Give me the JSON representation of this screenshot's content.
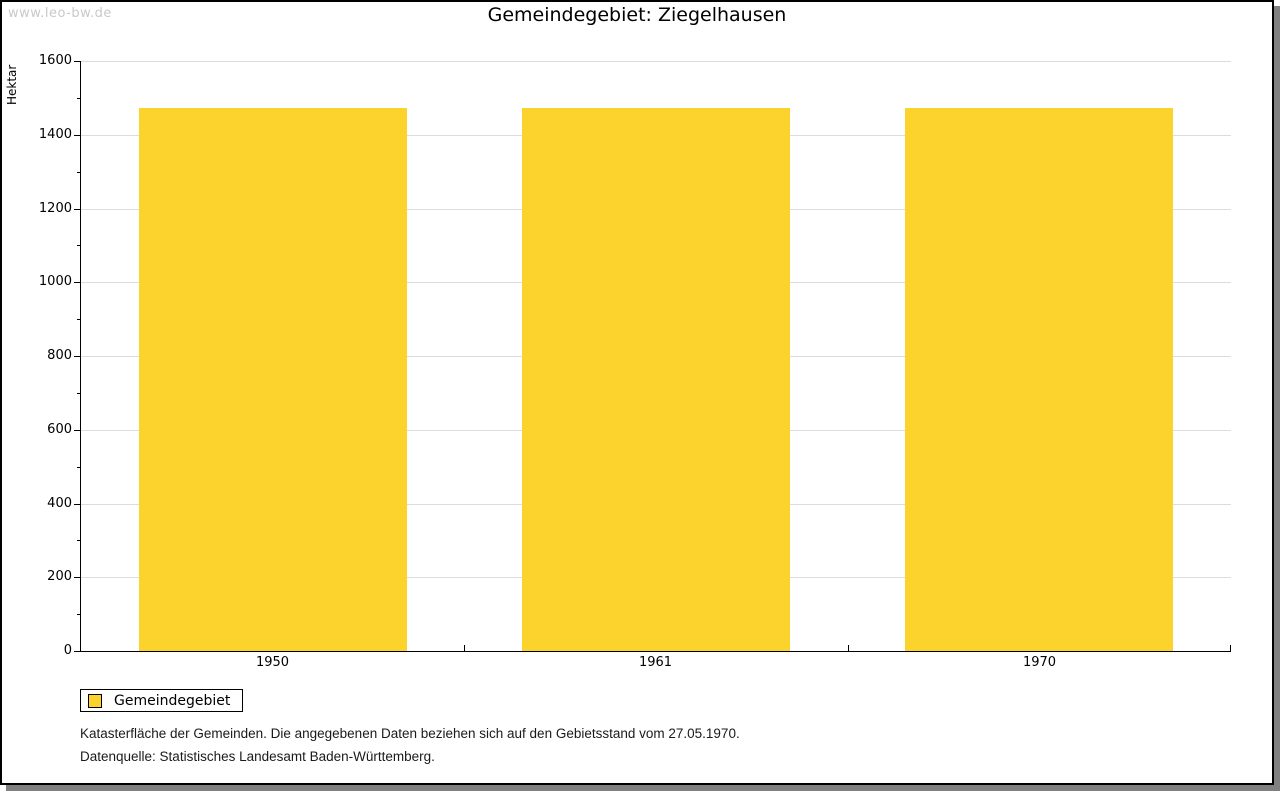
{
  "watermark": "www.leo-bw.de",
  "title": "Gemeindegebiet: Ziegelhausen",
  "chart_data": {
    "type": "bar",
    "title": "Gemeindegebiet: Ziegelhausen",
    "xlabel": "",
    "ylabel": "Hektar",
    "categories": [
      "1950",
      "1961",
      "1970"
    ],
    "series": [
      {
        "name": "Gemeindegebiet",
        "color": "#FCD32D",
        "values": [
          1473,
          1473,
          1473
        ]
      }
    ],
    "ylim": [
      0,
      1600
    ],
    "y_major_step": 200,
    "y_minor_step": 100,
    "grid": true,
    "legend_position": "bottom-left"
  },
  "legend": {
    "items": [
      {
        "label": "Gemeindegebiet",
        "color": "#FCD32D"
      }
    ]
  },
  "footer": {
    "line1": "Katasterfläche der Gemeinden. Die angegebenen Daten beziehen sich auf den Gebietsstand vom 27.05.1970.",
    "line2": "Datenquelle: Statistisches Landesamt Baden-Württemberg."
  },
  "colors": {
    "bar": "#FCD32D",
    "gridline": "#DCDCDC",
    "axis": "#000000",
    "watermark": "#C9C9C9",
    "frame_shadow": "#808080"
  }
}
